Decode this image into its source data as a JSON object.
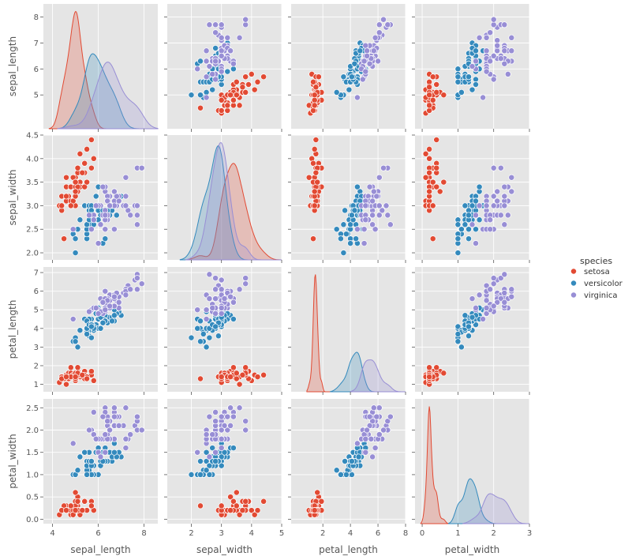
{
  "legend": {
    "title": "species",
    "placement": "right",
    "entries": [
      {
        "name": "setosa",
        "color": "#E24A33"
      },
      {
        "name": "versicolor",
        "color": "#348ABD"
      },
      {
        "name": "virginica",
        "color": "#988ED5"
      }
    ]
  },
  "style": {
    "panel_bg": "#E5E5E5",
    "grid": "#FFFFFF",
    "tick_label": "#555555",
    "axis_label": "#555555"
  },
  "chart_data": {
    "type": "scatter",
    "kind": "pairplot",
    "diag_kind": "kde",
    "variables": [
      "sepal_length",
      "sepal_width",
      "petal_length",
      "petal_width"
    ],
    "axis_labels": {
      "sepal_length": "sepal_length",
      "sepal_width": "sepal_width",
      "petal_length": "petal_length",
      "petal_width": "petal_width"
    },
    "axis_ranges": {
      "sepal_length": [
        3.7,
        8.5
      ],
      "sepal_width": [
        1.85,
        4.5
      ],
      "petal_length": [
        0.6,
        7.3
      ],
      "petal_width": [
        -0.1,
        2.7
      ]
    },
    "x_tick_ranges": {
      "sepal_length": [
        3.6,
        8.6
      ],
      "sepal_width": [
        1.2,
        5.0
      ],
      "petal_length": [
        -0.3,
        8.0
      ],
      "petal_width": [
        -0.2,
        3.0
      ]
    },
    "ticks": {
      "sepal_length": [
        4,
        6,
        8
      ],
      "sepal_width": [
        2,
        3,
        4,
        5
      ],
      "petal_length": [
        2,
        4,
        6,
        8
      ],
      "petal_width": [
        0,
        1,
        2,
        3
      ]
    },
    "y_ticks": {
      "sepal_length": [
        5,
        6,
        7,
        8
      ],
      "sepal_width": [
        2.0,
        2.5,
        3.0,
        3.5,
        4.0,
        4.5
      ],
      "petal_length": [
        1,
        2,
        3,
        4,
        5,
        6,
        7
      ],
      "petal_width": [
        0.0,
        0.5,
        1.0,
        1.5,
        2.0,
        2.5
      ]
    },
    "grid": true,
    "series": [
      {
        "name": "setosa",
        "color": "#E24A33",
        "points": [
          [
            5.1,
            3.5,
            1.4,
            0.2
          ],
          [
            4.9,
            3.0,
            1.4,
            0.2
          ],
          [
            4.7,
            3.2,
            1.3,
            0.2
          ],
          [
            4.6,
            3.1,
            1.5,
            0.2
          ],
          [
            5.0,
            3.6,
            1.4,
            0.2
          ],
          [
            5.4,
            3.9,
            1.7,
            0.4
          ],
          [
            4.6,
            3.4,
            1.4,
            0.3
          ],
          [
            5.0,
            3.4,
            1.5,
            0.2
          ],
          [
            4.4,
            2.9,
            1.4,
            0.2
          ],
          [
            4.9,
            3.1,
            1.5,
            0.1
          ],
          [
            5.4,
            3.7,
            1.5,
            0.2
          ],
          [
            4.8,
            3.4,
            1.6,
            0.2
          ],
          [
            4.8,
            3.0,
            1.4,
            0.1
          ],
          [
            4.3,
            3.0,
            1.1,
            0.1
          ],
          [
            5.8,
            4.0,
            1.2,
            0.2
          ],
          [
            5.7,
            4.4,
            1.5,
            0.4
          ],
          [
            5.4,
            3.9,
            1.3,
            0.4
          ],
          [
            5.1,
            3.5,
            1.4,
            0.3
          ],
          [
            5.7,
            3.8,
            1.7,
            0.3
          ],
          [
            5.1,
            3.8,
            1.5,
            0.3
          ],
          [
            5.4,
            3.4,
            1.7,
            0.2
          ],
          [
            5.1,
            3.7,
            1.5,
            0.4
          ],
          [
            4.6,
            3.6,
            1.0,
            0.2
          ],
          [
            5.1,
            3.3,
            1.7,
            0.5
          ],
          [
            4.8,
            3.4,
            1.9,
            0.2
          ],
          [
            5.0,
            3.0,
            1.6,
            0.2
          ],
          [
            5.0,
            3.4,
            1.6,
            0.4
          ],
          [
            5.2,
            3.5,
            1.5,
            0.2
          ],
          [
            5.2,
            3.4,
            1.4,
            0.2
          ],
          [
            4.7,
            3.2,
            1.6,
            0.2
          ],
          [
            4.8,
            3.1,
            1.6,
            0.2
          ],
          [
            5.4,
            3.4,
            1.5,
            0.4
          ],
          [
            5.2,
            4.1,
            1.5,
            0.1
          ],
          [
            5.5,
            4.2,
            1.4,
            0.2
          ],
          [
            4.9,
            3.1,
            1.5,
            0.2
          ],
          [
            5.0,
            3.2,
            1.2,
            0.2
          ],
          [
            5.5,
            3.5,
            1.3,
            0.2
          ],
          [
            4.9,
            3.6,
            1.4,
            0.1
          ],
          [
            4.4,
            3.0,
            1.3,
            0.2
          ],
          [
            5.1,
            3.4,
            1.5,
            0.2
          ],
          [
            5.0,
            3.5,
            1.3,
            0.3
          ],
          [
            4.5,
            2.3,
            1.3,
            0.3
          ],
          [
            4.4,
            3.2,
            1.3,
            0.2
          ],
          [
            5.0,
            3.5,
            1.6,
            0.6
          ],
          [
            5.1,
            3.8,
            1.9,
            0.4
          ],
          [
            4.8,
            3.0,
            1.4,
            0.3
          ],
          [
            5.1,
            3.8,
            1.6,
            0.2
          ],
          [
            4.6,
            3.2,
            1.4,
            0.2
          ],
          [
            5.3,
            3.7,
            1.5,
            0.2
          ],
          [
            5.0,
            3.3,
            1.4,
            0.2
          ]
        ]
      },
      {
        "name": "versicolor",
        "color": "#348ABD",
        "points": [
          [
            7.0,
            3.2,
            4.7,
            1.4
          ],
          [
            6.4,
            3.2,
            4.5,
            1.5
          ],
          [
            6.9,
            3.1,
            4.9,
            1.5
          ],
          [
            5.5,
            2.3,
            4.0,
            1.3
          ],
          [
            6.5,
            2.8,
            4.6,
            1.5
          ],
          [
            5.7,
            2.8,
            4.5,
            1.3
          ],
          [
            6.3,
            3.3,
            4.7,
            1.6
          ],
          [
            4.9,
            2.4,
            3.3,
            1.0
          ],
          [
            6.6,
            2.9,
            4.6,
            1.3
          ],
          [
            5.2,
            2.7,
            3.9,
            1.4
          ],
          [
            5.0,
            2.0,
            3.5,
            1.0
          ],
          [
            5.9,
            3.0,
            4.2,
            1.5
          ],
          [
            6.0,
            2.2,
            4.0,
            1.0
          ],
          [
            6.1,
            2.9,
            4.7,
            1.4
          ],
          [
            5.6,
            2.9,
            3.6,
            1.3
          ],
          [
            6.7,
            3.1,
            4.4,
            1.4
          ],
          [
            5.6,
            3.0,
            4.5,
            1.5
          ],
          [
            5.8,
            2.7,
            4.1,
            1.0
          ],
          [
            6.2,
            2.2,
            4.5,
            1.5
          ],
          [
            5.6,
            2.5,
            3.9,
            1.1
          ],
          [
            5.9,
            3.2,
            4.8,
            1.8
          ],
          [
            6.1,
            2.8,
            4.0,
            1.3
          ],
          [
            6.3,
            2.5,
            4.9,
            1.5
          ],
          [
            6.1,
            2.8,
            4.7,
            1.2
          ],
          [
            6.4,
            2.9,
            4.3,
            1.3
          ],
          [
            6.6,
            3.0,
            4.4,
            1.4
          ],
          [
            6.8,
            2.8,
            4.8,
            1.4
          ],
          [
            6.7,
            3.0,
            5.0,
            1.7
          ],
          [
            6.0,
            2.9,
            4.5,
            1.5
          ],
          [
            5.7,
            2.6,
            3.5,
            1.0
          ],
          [
            5.5,
            2.4,
            3.8,
            1.1
          ],
          [
            5.5,
            2.4,
            3.7,
            1.0
          ],
          [
            5.8,
            2.7,
            3.9,
            1.2
          ],
          [
            6.0,
            2.7,
            5.1,
            1.6
          ],
          [
            5.4,
            3.0,
            4.5,
            1.5
          ],
          [
            6.0,
            3.4,
            4.5,
            1.6
          ],
          [
            6.7,
            3.1,
            4.7,
            1.5
          ],
          [
            6.3,
            2.3,
            4.4,
            1.3
          ],
          [
            5.6,
            3.0,
            4.1,
            1.3
          ],
          [
            5.5,
            2.5,
            4.0,
            1.3
          ],
          [
            5.5,
            2.6,
            4.4,
            1.2
          ],
          [
            6.1,
            3.0,
            4.6,
            1.4
          ],
          [
            5.8,
            2.6,
            4.0,
            1.2
          ],
          [
            5.0,
            2.3,
            3.3,
            1.0
          ],
          [
            5.6,
            2.7,
            4.2,
            1.3
          ],
          [
            5.7,
            3.0,
            4.2,
            1.2
          ],
          [
            5.7,
            2.9,
            4.2,
            1.3
          ],
          [
            6.2,
            2.9,
            4.3,
            1.3
          ],
          [
            5.1,
            2.5,
            3.0,
            1.1
          ],
          [
            5.7,
            2.8,
            4.1,
            1.3
          ]
        ]
      },
      {
        "name": "virginica",
        "color": "#988ED5",
        "points": [
          [
            6.3,
            3.3,
            6.0,
            2.5
          ],
          [
            5.8,
            2.7,
            5.1,
            1.9
          ],
          [
            7.1,
            3.0,
            5.9,
            2.1
          ],
          [
            6.3,
            2.9,
            5.6,
            1.8
          ],
          [
            6.5,
            3.0,
            5.8,
            2.2
          ],
          [
            7.6,
            3.0,
            6.6,
            2.1
          ],
          [
            4.9,
            2.5,
            4.5,
            1.7
          ],
          [
            7.3,
            2.9,
            6.3,
            1.8
          ],
          [
            6.7,
            2.5,
            5.8,
            1.8
          ],
          [
            7.2,
            3.6,
            6.1,
            2.5
          ],
          [
            6.5,
            3.2,
            5.1,
            2.0
          ],
          [
            6.4,
            2.7,
            5.3,
            1.9
          ],
          [
            6.8,
            3.0,
            5.5,
            2.1
          ],
          [
            5.7,
            2.5,
            5.0,
            2.0
          ],
          [
            5.8,
            2.8,
            5.1,
            2.4
          ],
          [
            6.4,
            3.2,
            5.3,
            2.3
          ],
          [
            6.5,
            3.0,
            5.5,
            1.8
          ],
          [
            7.7,
            3.8,
            6.7,
            2.2
          ],
          [
            7.7,
            2.6,
            6.9,
            2.3
          ],
          [
            6.0,
            2.2,
            5.0,
            1.5
          ],
          [
            6.9,
            3.2,
            5.7,
            2.3
          ],
          [
            5.6,
            2.8,
            4.9,
            2.0
          ],
          [
            7.7,
            2.8,
            6.7,
            2.0
          ],
          [
            6.3,
            2.7,
            4.9,
            1.8
          ],
          [
            6.7,
            3.3,
            5.7,
            2.1
          ],
          [
            7.2,
            3.2,
            6.0,
            1.8
          ],
          [
            6.2,
            2.8,
            4.8,
            1.8
          ],
          [
            6.1,
            3.0,
            4.9,
            1.8
          ],
          [
            6.4,
            2.8,
            5.6,
            2.1
          ],
          [
            7.2,
            3.0,
            5.8,
            1.6
          ],
          [
            7.4,
            2.8,
            6.1,
            1.9
          ],
          [
            7.9,
            3.8,
            6.4,
            2.0
          ],
          [
            6.4,
            2.8,
            5.6,
            2.2
          ],
          [
            6.3,
            2.8,
            5.1,
            1.5
          ],
          [
            6.1,
            2.6,
            5.6,
            1.4
          ],
          [
            7.7,
            3.0,
            6.1,
            2.3
          ],
          [
            6.3,
            3.4,
            5.6,
            2.4
          ],
          [
            6.4,
            3.1,
            5.5,
            1.8
          ],
          [
            6.0,
            3.0,
            4.8,
            1.8
          ],
          [
            6.9,
            3.1,
            5.4,
            2.1
          ],
          [
            6.7,
            3.1,
            5.6,
            2.4
          ],
          [
            6.9,
            3.1,
            5.1,
            2.3
          ],
          [
            5.8,
            2.7,
            5.1,
            1.9
          ],
          [
            6.8,
            3.2,
            5.9,
            2.3
          ],
          [
            6.7,
            3.3,
            5.7,
            2.5
          ],
          [
            6.7,
            3.0,
            5.2,
            2.3
          ],
          [
            6.3,
            2.5,
            5.0,
            1.9
          ],
          [
            6.5,
            3.0,
            5.2,
            2.0
          ],
          [
            6.2,
            3.4,
            5.4,
            2.3
          ],
          [
            5.9,
            3.0,
            5.1,
            1.8
          ]
        ]
      }
    ]
  }
}
